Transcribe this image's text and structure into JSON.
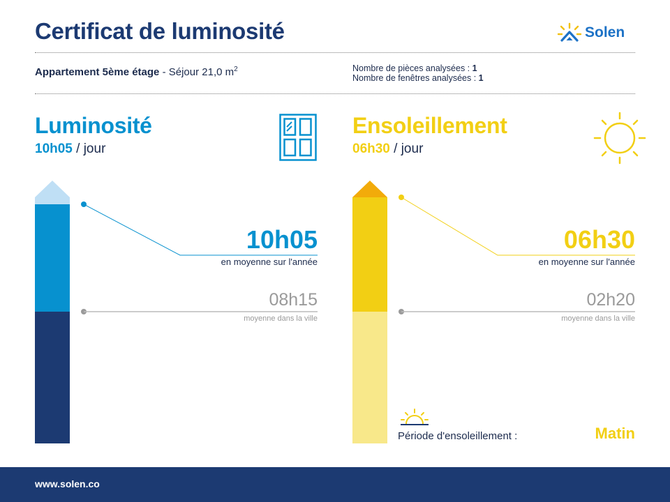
{
  "header": {
    "title": "Certificat de luminosité",
    "brand": "Solen"
  },
  "property": {
    "name": "Appartement 5ème étage",
    "room_prefix": " - Séjour 21,0 m",
    "area_unit_exp": "2",
    "rooms_label": "Nombre de pièces analysées : ",
    "rooms_value": "1",
    "windows_label": "Nombre de fenêtres analysées : ",
    "windows_value": "1"
  },
  "luminosite": {
    "title": "Luminosité",
    "value": "10h05",
    "per_day": " / jour",
    "yearly_value": "10h05",
    "yearly_caption": "en moyenne sur l'année",
    "city_value": "08h15",
    "city_caption": "moyenne dans la ville",
    "colors": {
      "accent": "#0791cf",
      "dark": "#1c3a72",
      "light": "#bfdff5"
    }
  },
  "ensoleillement": {
    "title": "Ensoleillement",
    "value": "06h30",
    "per_day": " / jour",
    "yearly_value": "06h30",
    "yearly_caption": "en moyenne sur l'année",
    "city_value": "02h20",
    "city_caption": "moyenne dans la ville",
    "period_label": "Période d'ensoleillement :",
    "period_value": "Matin",
    "colors": {
      "accent": "#f2cf14",
      "light": "#f8e88a",
      "top": "#f2ab0a"
    }
  },
  "footer": {
    "url": "www.solen.co",
    "color": "#1c3a72"
  },
  "icons": [
    "solen-logo-icon",
    "window-icon",
    "sun-icon",
    "sunrise-icon"
  ]
}
